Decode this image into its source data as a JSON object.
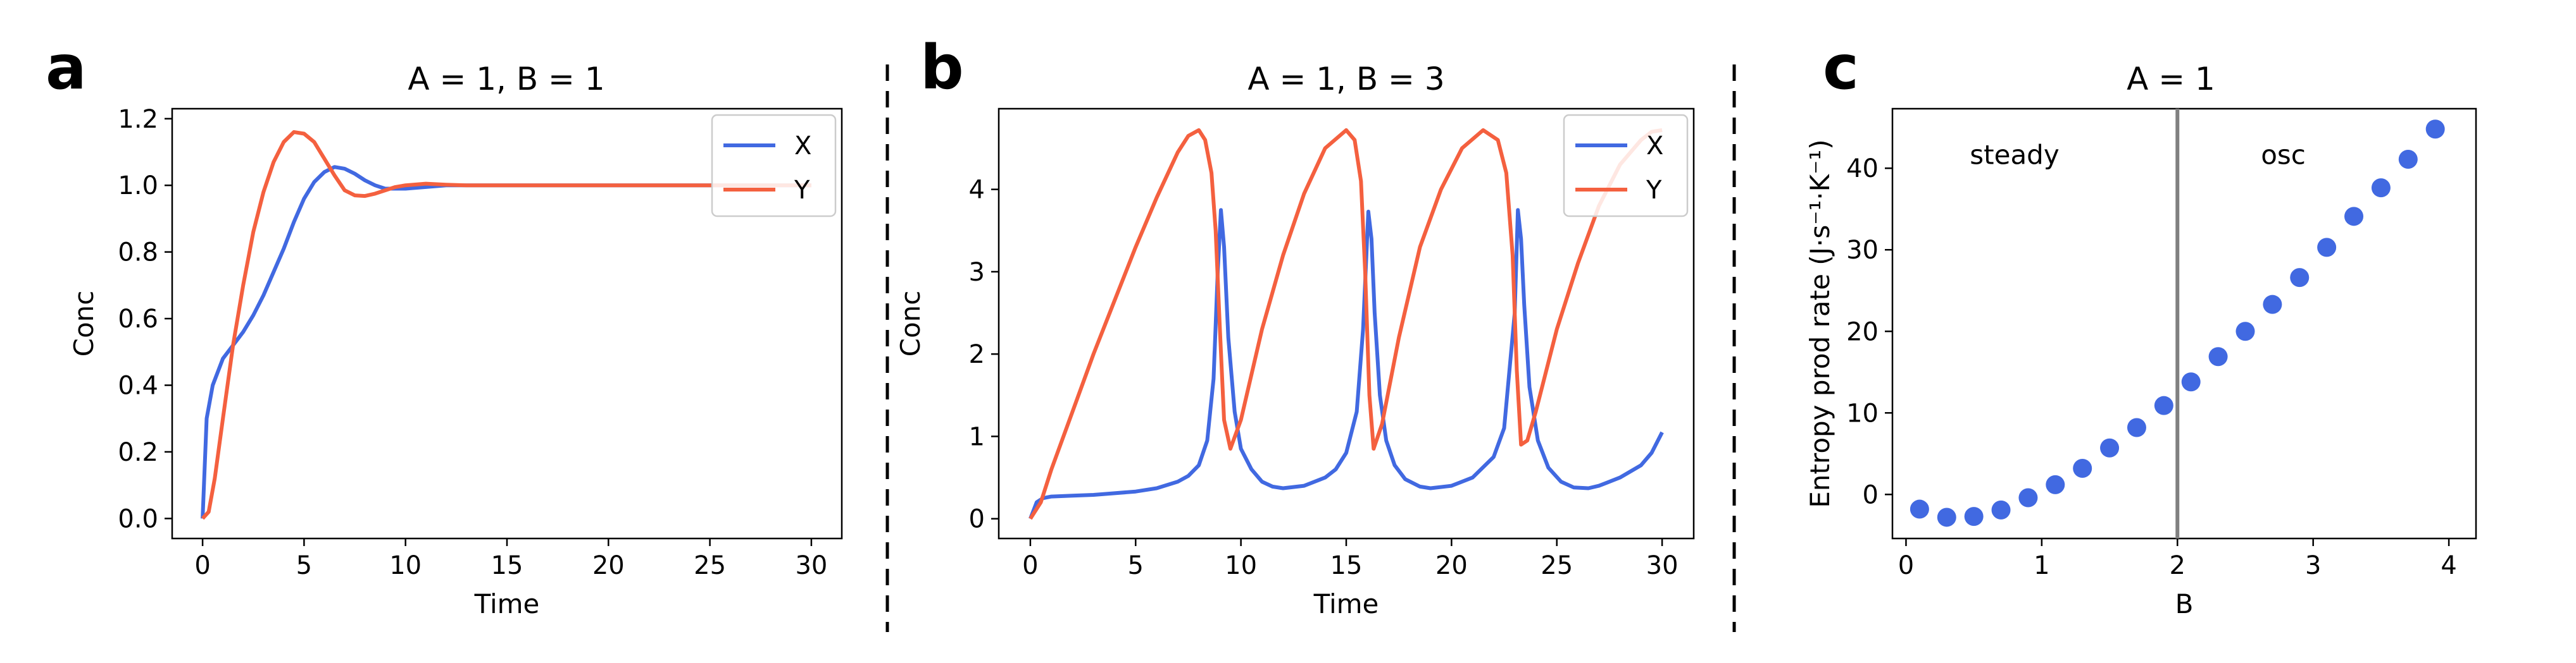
{
  "colors": {
    "X": "#4169E1",
    "Y": "#F4603F",
    "divider": "#808080"
  },
  "panels": [
    {
      "letter": "a",
      "title": "A = 1, B = 1"
    },
    {
      "letter": "b",
      "title": "A = 1, B = 3"
    },
    {
      "letter": "c",
      "title": "A = 1"
    }
  ],
  "chart_data": [
    {
      "type": "line",
      "title": "A = 1, B = 1",
      "xlabel": "Time",
      "ylabel": "Conc",
      "xlim": [
        -1.5,
        31.5
      ],
      "ylim": [
        -0.06,
        1.23
      ],
      "xticks": [
        "0",
        "5",
        "10",
        "15",
        "20",
        "25",
        "30"
      ],
      "yticks": [
        "0.0",
        "0.2",
        "0.4",
        "0.6",
        "0.8",
        "1.0",
        "1.2"
      ],
      "legend": {
        "position": "top-right",
        "entries": [
          "X",
          "Y"
        ]
      },
      "series": [
        {
          "name": "X",
          "x": [
            0,
            0.2,
            0.5,
            1,
            1.5,
            2,
            2.5,
            3,
            3.5,
            4,
            4.5,
            5,
            5.5,
            6,
            6.5,
            7,
            7.5,
            8,
            8.5,
            9,
            9.5,
            10,
            11,
            12,
            13,
            14,
            15,
            20,
            25,
            30
          ],
          "y": [
            0,
            0.3,
            0.4,
            0.48,
            0.52,
            0.56,
            0.61,
            0.67,
            0.74,
            0.81,
            0.89,
            0.96,
            1.01,
            1.04,
            1.055,
            1.05,
            1.035,
            1.015,
            1.0,
            0.99,
            0.99,
            0.99,
            0.995,
            1.0,
            1.0,
            1.0,
            1.0,
            1.0,
            1.0,
            1.0
          ]
        },
        {
          "name": "Y",
          "x": [
            0,
            0.3,
            0.6,
            1,
            1.5,
            2,
            2.5,
            3,
            3.5,
            4,
            4.5,
            5,
            5.5,
            6,
            6.5,
            7,
            7.5,
            8,
            8.5,
            9,
            9.5,
            10,
            11,
            12,
            13,
            14,
            15,
            20,
            25,
            30
          ],
          "y": [
            0,
            0.02,
            0.12,
            0.3,
            0.52,
            0.7,
            0.86,
            0.98,
            1.07,
            1.13,
            1.16,
            1.155,
            1.13,
            1.08,
            1.03,
            0.985,
            0.97,
            0.968,
            0.975,
            0.985,
            0.995,
            1.0,
            1.005,
            1.002,
            1.0,
            1.0,
            1.0,
            1.0,
            1.0,
            1.0
          ]
        }
      ]
    },
    {
      "type": "line",
      "title": "A = 1, B = 3",
      "xlabel": "Time",
      "ylabel": "Conc",
      "xlim": [
        -1.5,
        31.5
      ],
      "ylim": [
        -0.24,
        4.98
      ],
      "xticks": [
        "0",
        "5",
        "10",
        "15",
        "20",
        "25",
        "30"
      ],
      "yticks": [
        "0",
        "1",
        "2",
        "3",
        "4"
      ],
      "legend": {
        "position": "top-right",
        "entries": [
          "X",
          "Y"
        ]
      },
      "series": [
        {
          "name": "X",
          "x": [
            0,
            0.3,
            0.6,
            1,
            2,
            3,
            4,
            5,
            6,
            7,
            7.5,
            8,
            8.4,
            8.7,
            8.9,
            9.05,
            9.2,
            9.4,
            9.7,
            10,
            10.5,
            11,
            11.5,
            12,
            13,
            14,
            14.5,
            15,
            15.5,
            15.8,
            16.05,
            16.2,
            16.35,
            16.6,
            16.9,
            17.3,
            17.8,
            18.5,
            19,
            20,
            21,
            22,
            22.5,
            23,
            23.15,
            23.3,
            23.45,
            23.7,
            24.1,
            24.6,
            25.2,
            25.8,
            26.5,
            27,
            28,
            29,
            29.5,
            30
          ],
          "y": [
            0,
            0.2,
            0.25,
            0.27,
            0.28,
            0.29,
            0.31,
            0.33,
            0.37,
            0.45,
            0.52,
            0.65,
            0.95,
            1.7,
            3.0,
            3.75,
            3.3,
            2.2,
            1.3,
            0.85,
            0.6,
            0.45,
            0.39,
            0.37,
            0.4,
            0.5,
            0.6,
            0.8,
            1.3,
            2.3,
            3.73,
            3.4,
            2.5,
            1.5,
            0.95,
            0.65,
            0.48,
            0.39,
            0.37,
            0.4,
            0.5,
            0.75,
            1.1,
            2.5,
            3.75,
            3.4,
            2.6,
            1.6,
            0.95,
            0.62,
            0.45,
            0.38,
            0.37,
            0.4,
            0.5,
            0.65,
            0.8,
            1.05
          ]
        },
        {
          "name": "Y",
          "x": [
            0,
            0.5,
            1,
            2,
            3,
            4,
            5,
            6,
            7,
            7.5,
            8,
            8.3,
            8.6,
            8.8,
            9,
            9.2,
            9.5,
            10,
            11,
            12,
            13,
            14,
            15,
            15.4,
            15.7,
            15.9,
            16.1,
            16.3,
            16.7,
            17.5,
            18.5,
            19.5,
            20.5,
            21.5,
            22.2,
            22.6,
            22.9,
            23.1,
            23.3,
            23.6,
            24,
            25,
            26,
            27,
            28,
            29,
            29.5,
            30
          ],
          "y": [
            0,
            0.2,
            0.6,
            1.3,
            2.0,
            2.65,
            3.3,
            3.9,
            4.45,
            4.65,
            4.72,
            4.6,
            4.2,
            3.5,
            2.3,
            1.2,
            0.85,
            1.2,
            2.3,
            3.2,
            3.95,
            4.5,
            4.72,
            4.6,
            4.1,
            3.0,
            1.5,
            0.85,
            1.15,
            2.2,
            3.3,
            4.0,
            4.5,
            4.72,
            4.6,
            4.2,
            3.2,
            1.8,
            0.9,
            0.95,
            1.3,
            2.3,
            3.1,
            3.8,
            4.3,
            4.6,
            4.7,
            4.72
          ]
        }
      ]
    },
    {
      "type": "scatter",
      "title": "A = 1",
      "xlabel": "B",
      "ylabel": "Entropy prod rate (J·s⁻¹·K⁻¹)",
      "xlim": [
        -0.1,
        4.2
      ],
      "ylim": [
        -5.4,
        47.3
      ],
      "xticks": [
        "0",
        "1",
        "2",
        "3",
        "4"
      ],
      "yticks": [
        "0",
        "10",
        "20",
        "30",
        "40"
      ],
      "annotations": [
        {
          "text": "steady",
          "x": 0.8,
          "y": 40.5
        },
        {
          "text": "osc",
          "x": 2.78,
          "y": 40.5
        }
      ],
      "vline": 2.0,
      "series": [
        {
          "name": "",
          "x": [
            0.1,
            0.3,
            0.5,
            0.7,
            0.9,
            1.1,
            1.3,
            1.5,
            1.7,
            1.9,
            2.1,
            2.3,
            2.5,
            2.7,
            2.9,
            3.1,
            3.3,
            3.5,
            3.7,
            3.9
          ],
          "y": [
            -1.8,
            -2.8,
            -2.7,
            -1.9,
            -0.4,
            1.2,
            3.2,
            5.7,
            8.2,
            10.9,
            13.8,
            16.9,
            20.0,
            23.3,
            26.6,
            30.3,
            34.1,
            37.6,
            41.1,
            44.8
          ]
        }
      ]
    }
  ]
}
